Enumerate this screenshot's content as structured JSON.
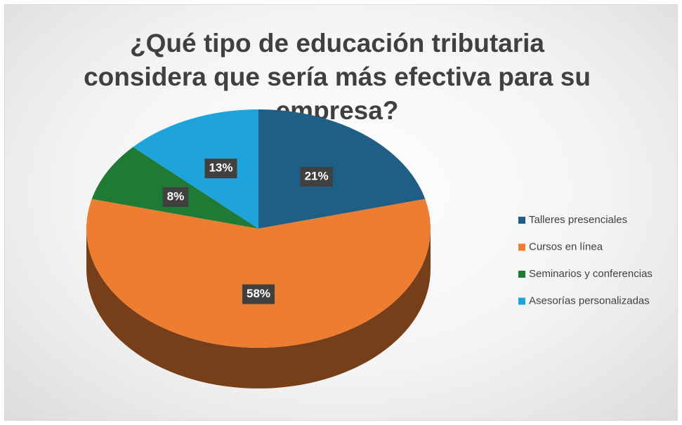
{
  "chart_data": {
    "type": "pie3d",
    "title": "¿Qué tipo de educación tributaria considera que sería más efectiva para su empresa?",
    "categories": [
      "Talleres presenciales",
      "Cursos en línea",
      "Seminarios y conferencias",
      "Asesorías personalizadas"
    ],
    "values": [
      21,
      58,
      8,
      13
    ],
    "value_labels": [
      "21%",
      "58%",
      "8%",
      "13%"
    ],
    "colors": [
      "#1f5f85",
      "#ed7d31",
      "#1e7a34",
      "#1ea4da"
    ],
    "legend": "right"
  }
}
